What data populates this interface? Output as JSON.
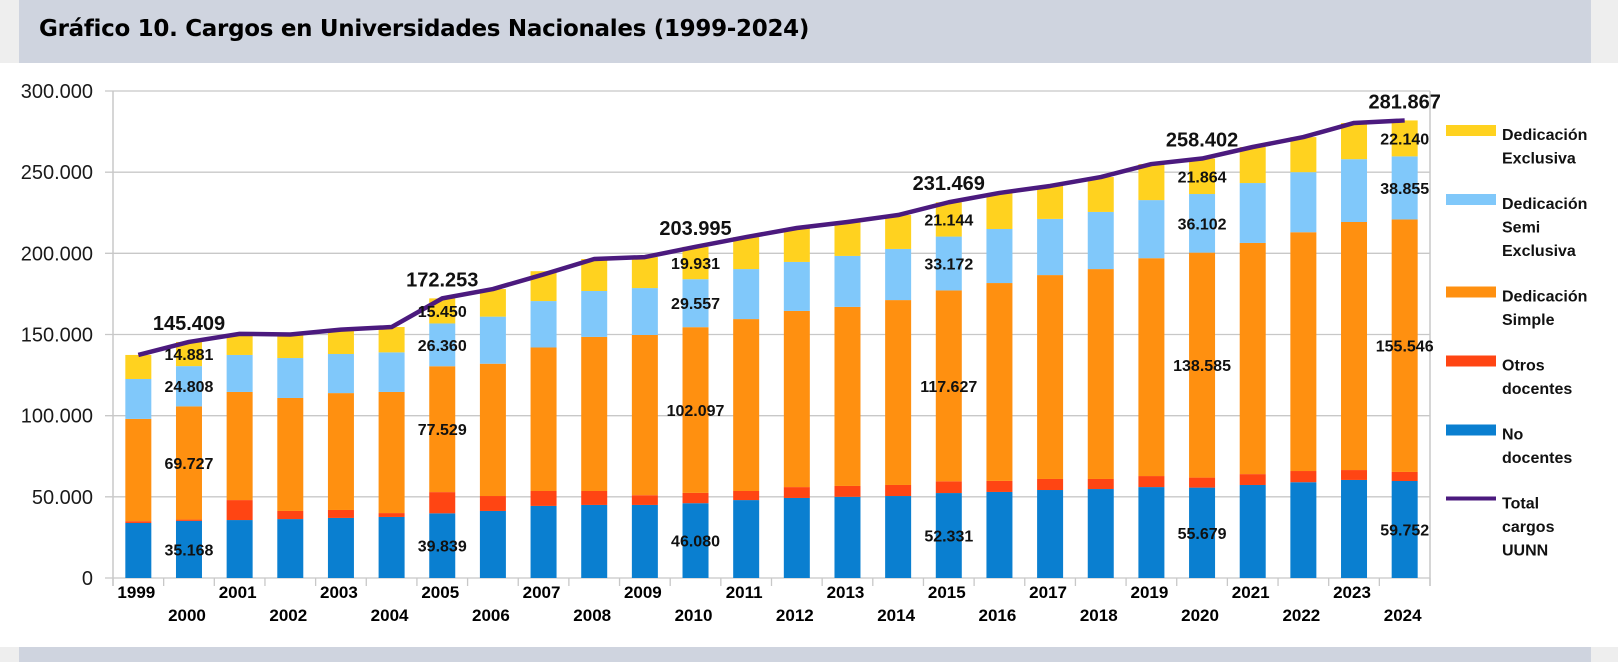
{
  "title": "Gráfico 10. Cargos en Universidades Nacionales (1999-2024)",
  "chart_data": {
    "type": "bar",
    "stacked": true,
    "title": "Gráfico 10. Cargos en Universidades Nacionales (1999-2024)",
    "xlabel": "",
    "ylabel": "",
    "ylim": [
      0,
      300000
    ],
    "yticks": [
      0,
      50000,
      100000,
      150000,
      200000,
      250000,
      300000
    ],
    "ytick_labels": [
      "0",
      "50.000",
      "100.000",
      "150.000",
      "200.000",
      "250.000",
      "300.000"
    ],
    "grid": true,
    "legend_position": "right",
    "categories": [
      "1999",
      "2000",
      "2001",
      "2002",
      "2003",
      "2004",
      "2005",
      "2006",
      "2007",
      "2008",
      "2009",
      "2010",
      "2011",
      "2012",
      "2013",
      "2014",
      "2015",
      "2016",
      "2017",
      "2018",
      "2019",
      "2020",
      "2021",
      "2022",
      "2023",
      "2024"
    ],
    "series": [
      {
        "name": "No docentes",
        "color": "#0a7fd0",
        "values": [
          33900,
          35168,
          35700,
          36300,
          37000,
          37600,
          39839,
          41300,
          44400,
          45000,
          45000,
          46080,
          48000,
          49300,
          50000,
          50500,
          52331,
          53000,
          54200,
          54800,
          56000,
          55679,
          57300,
          59000,
          60400,
          59752
        ]
      },
      {
        "name": "Otros docentes",
        "color": "#ff4513",
        "values": [
          1100,
          825,
          12300,
          5000,
          4900,
          2400,
          13075,
          9200,
          9200,
          8600,
          6000,
          6330,
          5600,
          6700,
          6700,
          6800,
          7195,
          6800,
          6800,
          6200,
          6800,
          6172,
          6700,
          6900,
          6100,
          5574
        ]
      },
      {
        "name": "Dedicación Simple",
        "color": "#ff9010",
        "values": [
          63000,
          69727,
          66600,
          69600,
          72000,
          74600,
          77529,
          81500,
          88400,
          94900,
          98700,
          102097,
          105900,
          108500,
          110300,
          113900,
          117627,
          121900,
          125600,
          129300,
          134200,
          138585,
          142400,
          147100,
          152800,
          155546
        ]
      },
      {
        "name": "Dedicación Semi Exclusiva",
        "color": "#80c8fa",
        "values": [
          24600,
          24808,
          22800,
          24600,
          24100,
          24400,
          26360,
          29000,
          28600,
          28300,
          28900,
          29557,
          30800,
          30200,
          31400,
          31500,
          33172,
          33300,
          34600,
          35200,
          35800,
          36102,
          36900,
          37000,
          38700,
          38855
        ]
      },
      {
        "name": "Dedicación Exclusiva",
        "color": "#ffd21f",
        "values": [
          14800,
          14881,
          13000,
          14500,
          15000,
          15600,
          15450,
          17000,
          18400,
          19700,
          19100,
          19931,
          19700,
          20900,
          20900,
          20900,
          21144,
          22200,
          20300,
          21500,
          22200,
          21864,
          22200,
          21600,
          22300,
          22140
        ]
      }
    ],
    "line": {
      "name": "Total cargos UUNN",
      "color": "#4b1a7e",
      "values": [
        137400,
        145409,
        150400,
        150000,
        153000,
        154600,
        172253,
        178000,
        187000,
        196500,
        197700,
        203995,
        210000,
        215600,
        219300,
        223600,
        231469,
        237200,
        241500,
        247000,
        255000,
        258402,
        265500,
        271600,
        280300,
        281867
      ]
    },
    "data_labels": [
      {
        "category": "2000",
        "series": "No docentes",
        "text": "35.168"
      },
      {
        "category": "2000",
        "series": "Dedicación Simple",
        "text": "69.727"
      },
      {
        "category": "2000",
        "series": "Dedicación Semi Exclusiva",
        "text": "24.808"
      },
      {
        "category": "2000",
        "series": "Dedicación Exclusiva",
        "text": "14.881"
      },
      {
        "category": "2000",
        "series": "Total cargos UUNN",
        "text": "145.409"
      },
      {
        "category": "2005",
        "series": "No docentes",
        "text": "39.839"
      },
      {
        "category": "2005",
        "series": "Dedicación Simple",
        "text": "77.529"
      },
      {
        "category": "2005",
        "series": "Dedicación Semi Exclusiva",
        "text": "26.360"
      },
      {
        "category": "2005",
        "series": "Dedicación Exclusiva",
        "text": "15.450"
      },
      {
        "category": "2005",
        "series": "Total cargos UUNN",
        "text": "172.253"
      },
      {
        "category": "2010",
        "series": "No docentes",
        "text": "46.080"
      },
      {
        "category": "2010",
        "series": "Dedicación Simple",
        "text": "102.097"
      },
      {
        "category": "2010",
        "series": "Dedicación Semi Exclusiva",
        "text": "29.557"
      },
      {
        "category": "2010",
        "series": "Dedicación Exclusiva",
        "text": "19.931"
      },
      {
        "category": "2010",
        "series": "Total cargos UUNN",
        "text": "203.995"
      },
      {
        "category": "2015",
        "series": "No docentes",
        "text": "52.331"
      },
      {
        "category": "2015",
        "series": "Dedicación Simple",
        "text": "117.627"
      },
      {
        "category": "2015",
        "series": "Dedicación Semi Exclusiva",
        "text": "33.172"
      },
      {
        "category": "2015",
        "series": "Dedicación Exclusiva",
        "text": "21.144"
      },
      {
        "category": "2015",
        "series": "Total cargos UUNN",
        "text": "231.469"
      },
      {
        "category": "2020",
        "series": "No docentes",
        "text": "55.679"
      },
      {
        "category": "2020",
        "series": "Dedicación Simple",
        "text": "138.585"
      },
      {
        "category": "2020",
        "series": "Dedicación Semi Exclusiva",
        "text": "36.102"
      },
      {
        "category": "2020",
        "series": "Dedicación Exclusiva",
        "text": "21.864"
      },
      {
        "category": "2020",
        "series": "Total cargos UUNN",
        "text": "258.402"
      },
      {
        "category": "2024",
        "series": "No docentes",
        "text": "59.752"
      },
      {
        "category": "2024",
        "series": "Dedicación Simple",
        "text": "155.546"
      },
      {
        "category": "2024",
        "series": "Dedicación Semi Exclusiva",
        "text": "38.855"
      },
      {
        "category": "2024",
        "series": "Dedicación Exclusiva",
        "text": "22.140"
      },
      {
        "category": "2024",
        "series": "Total cargos UUNN",
        "text": "281.867"
      }
    ],
    "legend": [
      {
        "lines": [
          "Dedicación",
          "Exclusiva"
        ],
        "color": "#ffd21f",
        "kind": "bar"
      },
      {
        "lines": [
          "Dedicación",
          "Semi",
          "Exclusiva"
        ],
        "color": "#80c8fa",
        "kind": "bar"
      },
      {
        "lines": [
          "Dedicación",
          "Simple"
        ],
        "color": "#ff9010",
        "kind": "bar"
      },
      {
        "lines": [
          "Otros",
          "docentes"
        ],
        "color": "#ff4513",
        "kind": "bar"
      },
      {
        "lines": [
          "No",
          "docentes"
        ],
        "color": "#0a7fd0",
        "kind": "bar"
      },
      {
        "lines": [
          "Total",
          "cargos",
          "UUNN"
        ],
        "color": "#4b1a7e",
        "kind": "line"
      }
    ]
  }
}
